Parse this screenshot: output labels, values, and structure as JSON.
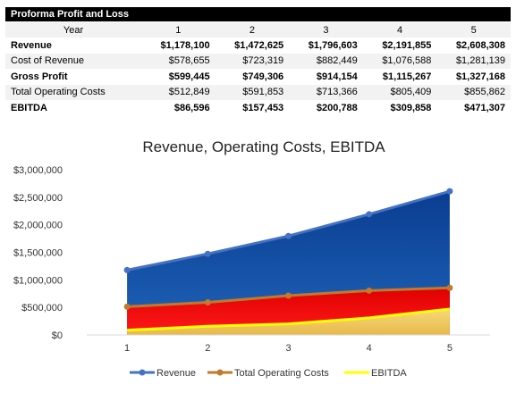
{
  "table": {
    "title": "Proforma Profit and Loss",
    "year_label": "Year",
    "years": [
      "1",
      "2",
      "3",
      "4",
      "5"
    ],
    "rows": [
      {
        "label": "Revenue",
        "bold": true,
        "values": [
          "$1,178,100",
          "$1,472,625",
          "$1,796,603",
          "$2,191,855",
          "$2,608,308"
        ]
      },
      {
        "label": "Cost of Revenue",
        "bold": false,
        "values": [
          "$578,655",
          "$723,319",
          "$882,449",
          "$1,076,588",
          "$1,281,139"
        ]
      },
      {
        "label": "Gross Profit",
        "bold": true,
        "values": [
          "$599,445",
          "$749,306",
          "$914,154",
          "$1,115,267",
          "$1,327,168"
        ]
      },
      {
        "label": "Total Operating Costs",
        "bold": false,
        "values": [
          "$512,849",
          "$591,853",
          "$713,366",
          "$805,409",
          "$855,862"
        ]
      },
      {
        "label": "EBITDA",
        "bold": true,
        "values": [
          "$86,596",
          "$157,453",
          "$200,788",
          "$309,858",
          "$471,307"
        ]
      }
    ]
  },
  "chart_data": {
    "type": "area",
    "title": "Revenue, Operating Costs, EBITDA",
    "xlabel": "",
    "ylabel": "",
    "x": [
      1,
      2,
      3,
      4,
      5
    ],
    "ylim": [
      0,
      3000000
    ],
    "yticks": [
      0,
      500000,
      1000000,
      1500000,
      2000000,
      2500000,
      3000000
    ],
    "ytick_labels": [
      "$0",
      "$500,000",
      "$1,000,000",
      "$1,500,000",
      "$2,000,000",
      "$2,500,000",
      "$3,000,000"
    ],
    "xtick_labels": [
      "1",
      "2",
      "3",
      "4",
      "5"
    ],
    "grid": false,
    "legend_position": "bottom",
    "series": [
      {
        "name": "Revenue",
        "values": [
          1178100,
          1472625,
          1796603,
          2191855,
          2608308
        ],
        "line_color": "#4472c4",
        "fill_top": "#0a3d91",
        "fill_bottom": "#1f63b8"
      },
      {
        "name": "Total Operating Costs",
        "values": [
          512849,
          591853,
          713366,
          805409,
          855862
        ],
        "line_color": "#c07a2c",
        "fill_top": "#e00000",
        "fill_bottom": "#ff1a1a"
      },
      {
        "name": "EBITDA",
        "values": [
          86596,
          157453,
          200788,
          309858,
          471307
        ],
        "line_color": "#ffff00",
        "fill_top": "#f5d97a",
        "fill_bottom": "#e8b94a"
      }
    ]
  }
}
